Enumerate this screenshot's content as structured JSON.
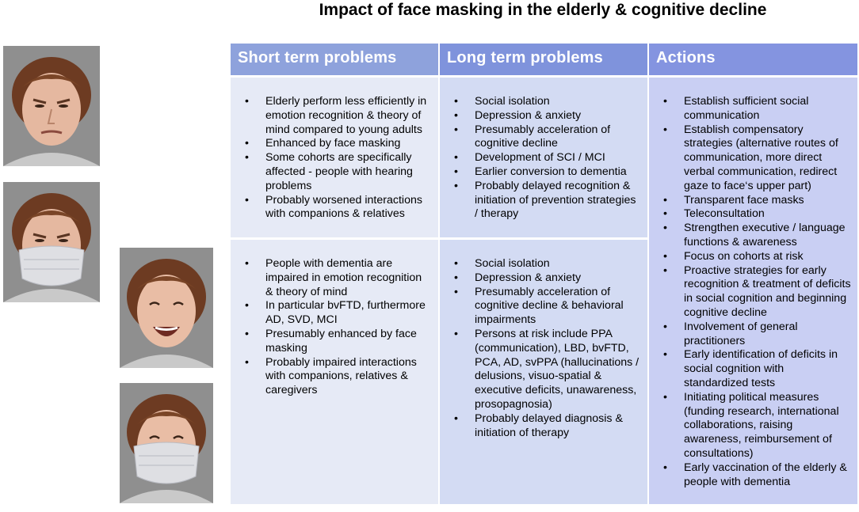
{
  "title": "Impact of face masking in the elderly & cognitive decline",
  "headers": {
    "short": "Short term problems",
    "long": "Long term problems",
    "actions": "Actions"
  },
  "colors": {
    "header_short": "#8ea2dc",
    "header_long": "#7f93dc",
    "header_actions": "#8494e0",
    "cell_short": "#e6eaf6",
    "cell_long": "#d3dbf3",
    "cell_actions": "#c9cff3"
  },
  "rows": {
    "short_top": [
      "Elderly perform less efficiently in emotion recognition & theory of mind compared to young adults",
      "Enhanced by face masking",
      "Some cohorts are specifically affected - people with hearing problems",
      "Probably worsened interactions with companions & relatives"
    ],
    "long_top": [
      "Social isolation",
      "Depression & anxiety",
      "Presumably acceleration of cognitive decline",
      "Development of SCI / MCI",
      "Earlier conversion to dementia",
      "Probably delayed recognition & initiation of prevention strategies / therapy"
    ],
    "short_bottom": [
      "People with dementia are impaired in emotion recognition & theory of mind",
      "In particular bvFTD, furthermore AD, SVD, MCI",
      "Presumably enhanced by face masking",
      "Probably impaired interactions with companions, relatives & caregivers"
    ],
    "long_bottom": [
      "Social isolation",
      "Depression & anxiety",
      "Presumably acceleration of cognitive decline & behavioral impairments",
      "Persons at risk include PPA (communication), LBD, bvFTD, PCA, AD, svPPA (hallucinations / delusions, visuo-spatial & executive deficits, unawareness, prosopagnosia)",
      "Probably delayed diagnosis & initiation of therapy"
    ],
    "actions": [
      "Establish sufficient social communication",
      "Establish compensatory strategies (alternative routes of communication, more direct verbal communication, redirect gaze to face‘s upper part)",
      "Transparent face masks",
      "Teleconsultation",
      "Strengthen executive / language functions & awareness",
      "Focus on cohorts at risk",
      "Proactive strategies for early recognition & treatment of deficits in social cognition and beginning cognitive decline",
      "Involvement of general practitioners",
      "Early identification of deficits in social cognition with standardized tests",
      "Initiating political measures (funding research, international collaborations, raising awareness, reimbursement of consultations)",
      "Early vaccination of the elderly & people with dementia"
    ]
  }
}
